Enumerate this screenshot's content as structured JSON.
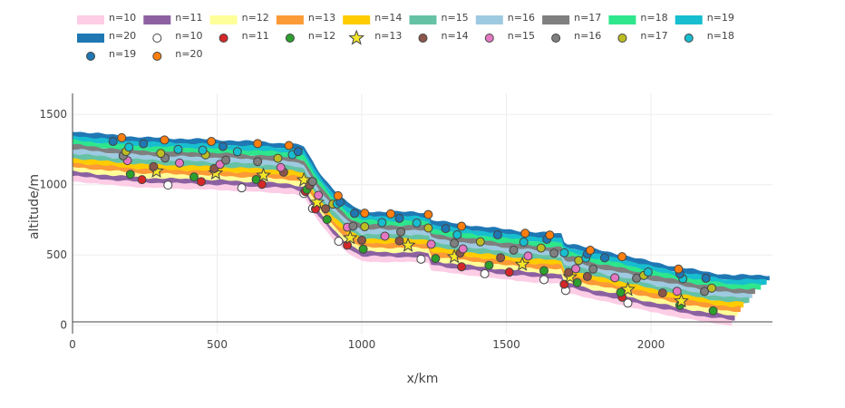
{
  "chart_data": {
    "type": "area",
    "xlabel": "x/km",
    "ylabel": "altitude/m",
    "xlim": [
      0,
      2420
    ],
    "ylim": [
      -60,
      1650
    ],
    "x_ticks": [
      0,
      500,
      1000,
      1500,
      2000
    ],
    "y_ticks": [
      0,
      500,
      1000,
      1500
    ],
    "grid": true,
    "legend": "top",
    "profile": {
      "x": [
        0,
        150,
        250,
        480,
        640,
        760,
        800,
        845,
        900,
        950,
        1000,
        1100,
        1180,
        1230,
        1236,
        1250,
        1330,
        1420,
        1500,
        1600,
        1690,
        1702,
        1730,
        1800,
        1900,
        2000,
        2100,
        2200,
        2280,
        2300
      ],
      "y": [
        1030,
        1000,
        985,
        970,
        955,
        940,
        920,
        760,
        620,
        520,
        460,
        455,
        455,
        450,
        400,
        395,
        370,
        350,
        330,
        310,
        300,
        230,
        230,
        190,
        150,
        100,
        60,
        25,
        5,
        5
      ],
      "band_width": 32
    },
    "series": [
      {
        "name": "n=10",
        "color": "#fccde5",
        "x_end": 2285,
        "marker_x": [
          330,
          585,
          800,
          830,
          920,
          1205,
          1425,
          1630,
          1705,
          1920
        ],
        "marker_symbol": "circle",
        "marker_color": "#ffffff"
      },
      {
        "name": "n=11",
        "color": "#8c61a2",
        "x_end": 2290,
        "marker_x": [
          240,
          445,
          655,
          805,
          840,
          950,
          1345,
          1510,
          1700,
          1900
        ],
        "marker_symbol": "circle",
        "marker_color": "#d62728"
      },
      {
        "name": "n=12",
        "color": "#ffff99",
        "x_end": 2300,
        "marker_x": [
          200,
          420,
          635,
          810,
          880,
          1005,
          1255,
          1440,
          1630,
          1745,
          1895,
          2100,
          2215
        ],
        "marker_symbol": "circle",
        "marker_color": "#2ca02c"
      },
      {
        "name": "n=13",
        "color": "#fb9a36",
        "x_end": 2310,
        "marker_x": [
          290,
          495,
          660,
          800,
          845,
          960,
          1160,
          1320,
          1555,
          1720,
          1920,
          2105
        ],
        "marker_symbol": "star",
        "marker_color": "#f5e629"
      },
      {
        "name": "n=14",
        "color": "#ffcc00",
        "x_end": 2320,
        "marker_x": [
          280,
          490,
          730,
          820,
          875,
          1000,
          1130,
          1340,
          1480,
          1715,
          1780,
          2040
        ],
        "marker_symbol": "circle",
        "marker_color": "#8c564b"
      },
      {
        "name": "n=15",
        "color": "#66c2a5",
        "x_end": 2340,
        "marker_x": [
          190,
          370,
          510,
          720,
          850,
          950,
          1080,
          1240,
          1350,
          1575,
          1740,
          1875,
          2090
        ],
        "marker_symbol": "circle",
        "marker_color": "#e377c2"
      },
      {
        "name": "n=16",
        "color": "#9ecae1",
        "x_end": 2350,
        "marker_x": [
          175,
          320,
          530,
          640,
          830,
          970,
          1135,
          1320,
          1525,
          1665,
          1800,
          1950,
          2185
        ],
        "marker_symbol": "circle",
        "marker_color": "#7f7f7f"
      },
      {
        "name": "n=17",
        "color": "#7f7f7f",
        "x_end": 2360,
        "marker_x": [
          185,
          305,
          460,
          710,
          900,
          1010,
          1230,
          1410,
          1620,
          1750,
          1975,
          2210
        ],
        "marker_symbol": "circle",
        "marker_color": "#bcbd22"
      },
      {
        "name": "n=18",
        "color": "#2ee68c",
        "x_end": 2380,
        "marker_x": [
          195,
          365,
          450,
          570,
          760,
          915,
          1070,
          1190,
          1330,
          1560,
          1700,
          1775,
          1990,
          2110
        ],
        "marker_symbol": "circle",
        "marker_color": "#17becf"
      },
      {
        "name": "n=19",
        "color": "#17becf",
        "x_end": 2400,
        "marker_x": [
          140,
          245,
          520,
          780,
          925,
          975,
          1130,
          1290,
          1470,
          1640,
          1780,
          1840,
          2100,
          2190
        ],
        "marker_symbol": "circle",
        "marker_color": "#1f77b4"
      },
      {
        "name": "n=20",
        "color": "#1f78b4",
        "x_end": 2410,
        "marker_x": [
          170,
          318,
          480,
          640,
          748,
          918,
          1010,
          1100,
          1230,
          1345,
          1565,
          1650,
          1790,
          1900,
          2095
        ],
        "marker_symbol": "circle",
        "marker_color": "#ff7f0e"
      }
    ]
  }
}
